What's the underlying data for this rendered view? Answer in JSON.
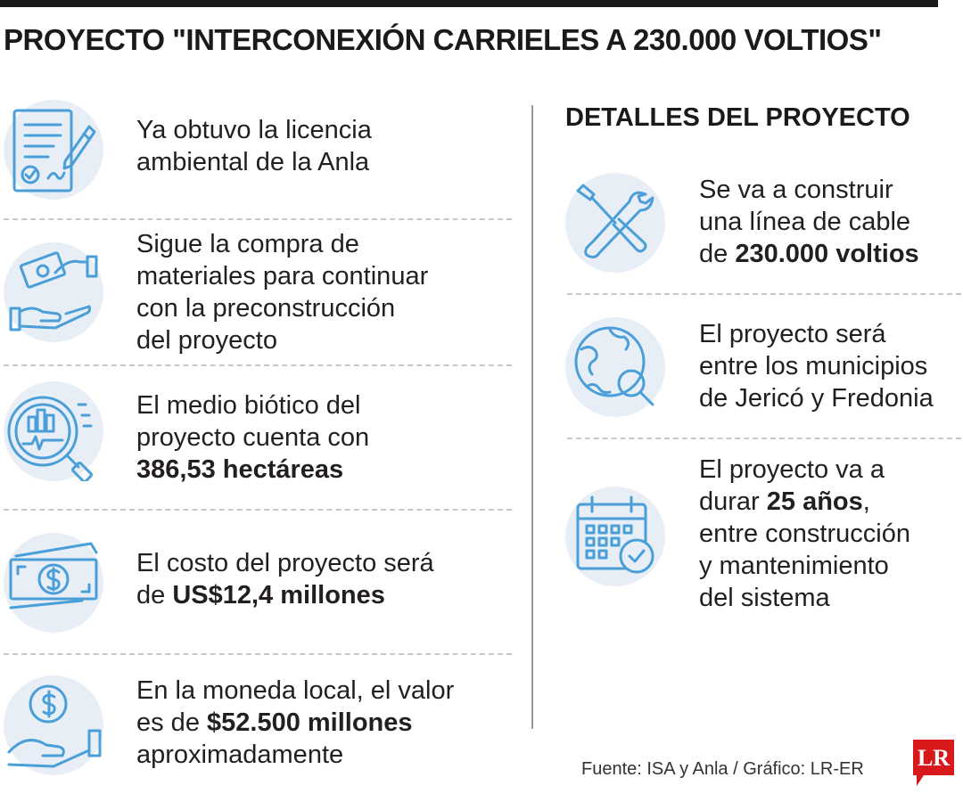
{
  "title": "PROYECTO \"INTERCONEXIÓN CARRIELES A 230.000 VOLTIOS\"",
  "subtitle": "DETALLES DEL PROYECTO",
  "left_items": [
    {
      "icon": "license-document-icon",
      "l1": "Ya obtuvo la licencia",
      "l2": "ambiental de la Anla"
    },
    {
      "icon": "money-exchange-hands-icon",
      "l1": "Sigue la compra de",
      "l2": "materiales para continuar",
      "l3": "con la preconstrucción",
      "l4": "del proyecto"
    },
    {
      "icon": "analysis-magnifier-icon",
      "l1": "El medio biótico del",
      "l2": "proyecto cuenta con",
      "bold": "386,53 hectáreas"
    },
    {
      "icon": "banknote-dollar-icon",
      "l1": "El costo del proyecto será",
      "pre": "de ",
      "bold": "US$12,4 millones"
    },
    {
      "icon": "hand-coin-icon",
      "l1": "En la moneda local, el valor",
      "pre": "es de ",
      "bold": "$52.500 millones",
      "l3": "aproximadamente"
    }
  ],
  "right_items": [
    {
      "icon": "wrench-screwdriver-icon",
      "l1": "Se va a construir",
      "l2": "una línea de cable",
      "pre": "de ",
      "bold": "230.000 voltios"
    },
    {
      "icon": "globe-search-icon",
      "l1": "El proyecto será",
      "l2": "entre los municipios",
      "l3": "de Jericó y Fredonia"
    },
    {
      "icon": "calendar-check-icon",
      "l1": "El proyecto va a",
      "pre": "durar ",
      "bold": "25 años",
      "post": ",",
      "l3": "entre construcción",
      "l4": "y mantenimiento",
      "l5": "del sistema"
    }
  ],
  "source": "Fuente: ISA y Anla / Gráfico: LR-ER",
  "logo": "LR",
  "colors": {
    "icon_stroke": "#4a9fd8",
    "icon_bg": "#e8eef6",
    "logo_red": "#d7191c",
    "text": "#231f20"
  }
}
